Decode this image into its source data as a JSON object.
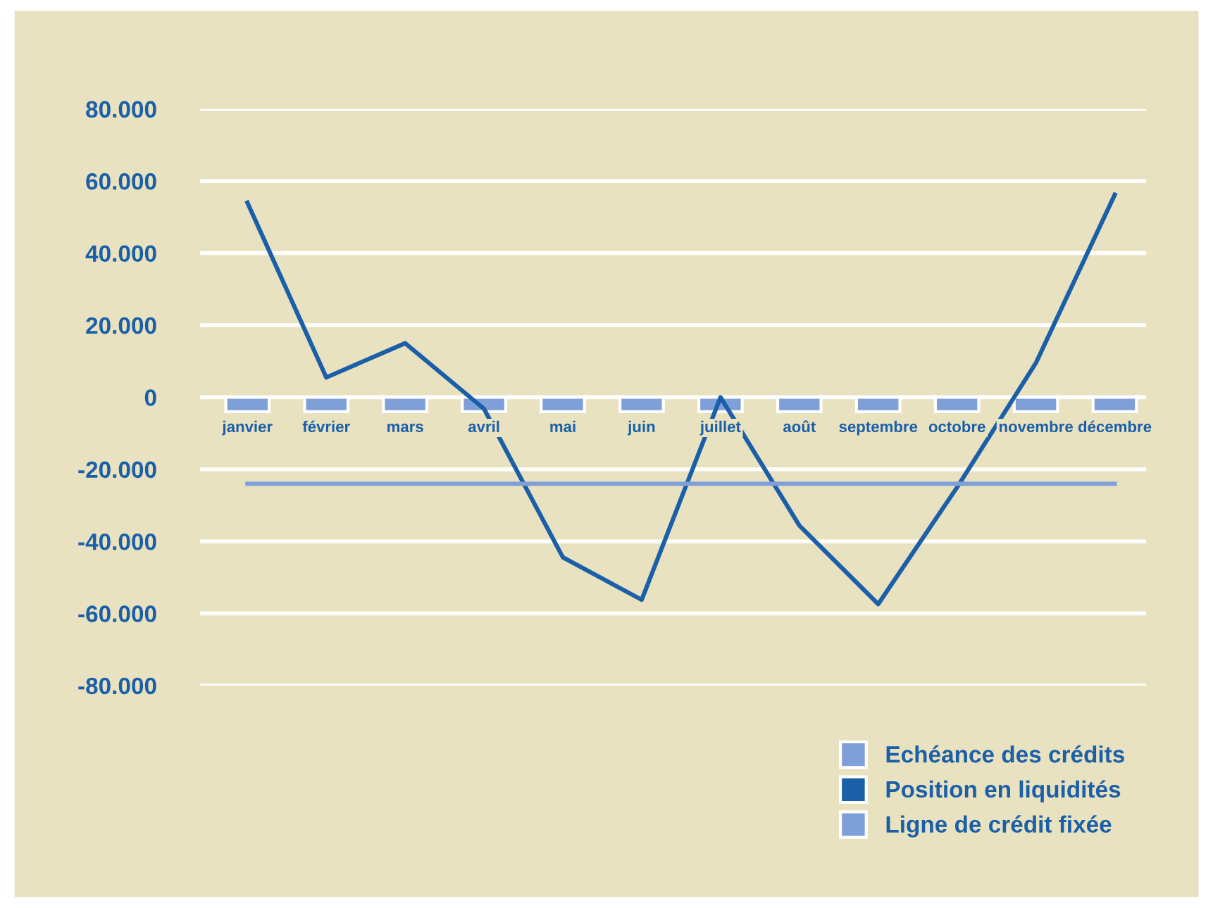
{
  "chart_data": {
    "type": "bar",
    "categories": [
      "janvier",
      "février",
      "mars",
      "avril",
      "mai",
      "juin",
      "juillet",
      "août",
      "septembre",
      "octobre",
      "novembre",
      "décembre"
    ],
    "series": [
      {
        "name": "Echéance des crédits",
        "color": "#7f9fd8",
        "values": [
          -4000,
          -4000,
          -4000,
          -4000,
          -4000,
          -4000,
          -4000,
          -4000,
          -4000,
          -4000,
          -4000,
          -4000
        ]
      },
      {
        "name": "Position en liquidités",
        "type": "line",
        "color": "#1a5fa8",
        "values": [
          54000,
          5500,
          15000,
          -3200,
          -44400,
          -56200,
          0,
          -35600,
          -57400,
          -25000,
          9500,
          56200
        ]
      },
      {
        "name": "Ligne de crédit fixée",
        "type": "line",
        "color": "#7f9fd8",
        "values": [
          -24000,
          -24000,
          -24000,
          -24000,
          -24000,
          -24000,
          -24000,
          -24000,
          -24000,
          -24000,
          -24000,
          -24000
        ]
      }
    ],
    "ylim": [
      -80000,
      80000
    ],
    "yticks": [
      {
        "value": -80000,
        "label": "-80.000"
      },
      {
        "value": -60000,
        "label": "-60.000"
      },
      {
        "value": -40000,
        "label": "-40.000"
      },
      {
        "value": -20000,
        "label": "-20.000"
      },
      {
        "value": 0,
        "label": "0"
      },
      {
        "value": 20000,
        "label": "20.000"
      },
      {
        "value": 40000,
        "label": "40.000"
      },
      {
        "value": 60000,
        "label": "60.000"
      },
      {
        "value": 80000,
        "label": "80.000"
      }
    ],
    "grid": "y",
    "legend": "bottom right"
  }
}
